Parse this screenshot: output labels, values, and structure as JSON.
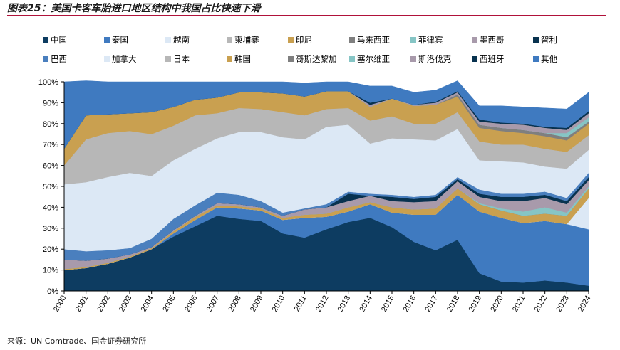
{
  "header": {
    "title": "图表25：美国卡客车胎进口地区结构中我国占比快速下滑"
  },
  "footer": {
    "source": "来源：UN Comtrade、国金证券研究所"
  },
  "chart_data": {
    "type": "area",
    "stacked": true,
    "title": "",
    "xlabel": "",
    "ylabel": "",
    "ylim": [
      0,
      100
    ],
    "y_tick_labels": [
      "0%",
      "10%",
      "20%",
      "30%",
      "40%",
      "50%",
      "60%",
      "70%",
      "80%",
      "90%",
      "100%"
    ],
    "grid": false,
    "legend_position": "top",
    "x": [
      "2000",
      "2001",
      "2002",
      "2003",
      "2004",
      "2005",
      "2006",
      "2007",
      "2008",
      "2009",
      "2010",
      "2011",
      "2012",
      "2013",
      "2014",
      "2015",
      "2016",
      "2017",
      "2018",
      "2019",
      "2020",
      "2021",
      "2022",
      "2023",
      "2024"
    ],
    "series": [
      {
        "name": "中国",
        "color": "#0d3c61",
        "values": [
          10,
          11,
          13,
          16,
          20,
          26,
          31,
          36,
          34.5,
          33.5,
          27.5,
          25.5,
          29.5,
          33,
          35,
          30.5,
          23.5,
          19.5,
          24.5,
          8.5,
          4.5,
          4,
          5,
          4,
          2.5
        ]
      },
      {
        "name": "泰国",
        "color": "#3f7ac0",
        "values": [
          0,
          0,
          0,
          0,
          0,
          1.5,
          3,
          4,
          5,
          5,
          6.5,
          9.5,
          6,
          5,
          6.5,
          7,
          13,
          17,
          21.5,
          29.5,
          30.5,
          28.5,
          28.5,
          28,
          27
        ]
      },
      {
        "name": "越南",
        "color": "#dce8f5",
        "values": [
          0,
          0,
          0,
          0,
          0,
          0,
          0,
          0,
          0,
          0,
          0,
          0,
          0,
          0,
          0,
          0,
          0,
          0,
          0,
          0,
          0,
          0,
          0,
          0,
          15
        ]
      },
      {
        "name": "柬埔寨",
        "color": "#b7b7b7",
        "values": [
          0,
          0,
          0,
          0,
          0,
          0,
          0,
          0,
          0,
          0,
          0,
          0,
          0,
          0,
          0,
          0,
          0,
          0,
          0,
          0,
          0,
          0,
          0,
          0,
          0
        ]
      },
      {
        "name": "印尼",
        "color": "#c9a050",
        "values": [
          0.5,
          0.5,
          0.5,
          0.5,
          0.5,
          1,
          1.5,
          1,
          1,
          1,
          1,
          1.5,
          1.5,
          2,
          1,
          2.5,
          2.5,
          3,
          3,
          3.5,
          3.5,
          3.5,
          3.5,
          4,
          4.5
        ]
      },
      {
        "name": "马来西亚",
        "color": "#7f7f7f",
        "values": [
          0,
          0,
          0,
          0,
          0,
          0,
          0,
          0,
          0,
          0,
          0,
          0,
          0,
          0,
          0,
          0,
          0,
          0,
          0,
          0,
          0,
          0,
          0,
          0,
          0
        ]
      },
      {
        "name": "菲律宾",
        "color": "#86c5c5",
        "values": [
          0,
          0,
          0,
          0,
          0,
          0,
          0,
          0,
          0,
          0,
          0,
          0,
          0,
          0,
          0,
          0,
          0,
          0,
          0,
          0.5,
          1,
          2,
          3,
          1.5,
          1
        ]
      },
      {
        "name": "墨西哥",
        "color": "#a89aab",
        "values": [
          4.5,
          3,
          2,
          1,
          0.5,
          0.5,
          0.5,
          1,
          1,
          0.5,
          1,
          2.5,
          3,
          3,
          3,
          3,
          3.5,
          3.5,
          3.5,
          3,
          3.5,
          5,
          4.5,
          4,
          3
        ]
      },
      {
        "name": "智利",
        "color": "#08324f",
        "values": [
          0,
          0,
          0,
          0,
          0,
          0,
          0,
          0,
          0,
          0,
          0,
          0,
          0,
          3.5,
          0,
          2,
          1.5,
          2,
          1,
          1.5,
          2,
          2,
          1.5,
          1.5,
          1.5
        ]
      },
      {
        "name": "巴西",
        "color": "#4a7fbe",
        "values": [
          5,
          4.5,
          4,
          3,
          4,
          5.5,
          5,
          5,
          4.5,
          3,
          1.5,
          0.5,
          1.5,
          1,
          1,
          1,
          1,
          1,
          1,
          2,
          1.5,
          1.5,
          1.5,
          1.5,
          2
        ]
      },
      {
        "name": "加拿大",
        "color": "#dce8f5",
        "values": [
          31,
          33,
          35,
          36,
          30,
          28,
          27,
          26,
          30,
          33,
          36,
          33,
          37,
          32,
          24,
          27,
          27.5,
          26,
          23,
          14,
          15.5,
          15,
          12,
          14,
          11
        ]
      },
      {
        "name": "日本",
        "color": "#b7b7b7",
        "values": [
          9,
          20.5,
          21,
          20,
          20,
          16.5,
          16,
          12,
          11.5,
          11,
          12,
          11.5,
          8.5,
          8,
          11,
          10.5,
          7.5,
          8,
          8,
          9,
          8,
          8.5,
          8.5,
          8,
          7
        ]
      },
      {
        "name": "韩国",
        "color": "#c9a050",
        "values": [
          8,
          11.5,
          9,
          8.5,
          10.5,
          9,
          7.5,
          7.5,
          7.5,
          8,
          9,
          9,
          8.5,
          8,
          6.5,
          8.5,
          8.5,
          9,
          7.5,
          6.5,
          6.5,
          5.5,
          6,
          5.5,
          5.5
        ]
      },
      {
        "name": "哥斯达黎加",
        "color": "#7f7f7f",
        "values": [
          0,
          0,
          0,
          0,
          0,
          0,
          0,
          0,
          0,
          0,
          0,
          0,
          0,
          0,
          0,
          0,
          0,
          0,
          1,
          1.5,
          1.5,
          1.5,
          1.5,
          1.5,
          1
        ]
      },
      {
        "name": "塞尔维亚",
        "color": "#86c5c5",
        "values": [
          0,
          0,
          0,
          0,
          0,
          0,
          0,
          0,
          0,
          0,
          0,
          0,
          0,
          0,
          0,
          0,
          0,
          0,
          0,
          0,
          0,
          0,
          0,
          2,
          2
        ]
      },
      {
        "name": "斯洛伐克",
        "color": "#a89aab",
        "values": [
          0,
          0,
          0,
          0,
          0,
          0,
          0,
          0,
          0,
          0,
          0,
          0,
          0,
          0,
          1,
          0,
          0.5,
          1,
          1,
          1.5,
          2,
          2.5,
          2.5,
          1.5,
          2
        ]
      },
      {
        "name": "西班牙",
        "color": "#08324f",
        "values": [
          0,
          0,
          0,
          0,
          0,
          0,
          0,
          0,
          0,
          0,
          0,
          0,
          0,
          0,
          1,
          0,
          0,
          0.5,
          0.5,
          1,
          0.5,
          0.5,
          0.5,
          1,
          1
        ]
      },
      {
        "name": "其他",
        "color": "#3f7ac0",
        "values": [
          32,
          16.5,
          15.5,
          15,
          14.5,
          12,
          8.5,
          7.5,
          5,
          5,
          5.5,
          6.5,
          4.5,
          4.5,
          8,
          6,
          6,
          5.5,
          5,
          6.5,
          8,
          8,
          9,
          9,
          9
        ]
      }
    ]
  }
}
